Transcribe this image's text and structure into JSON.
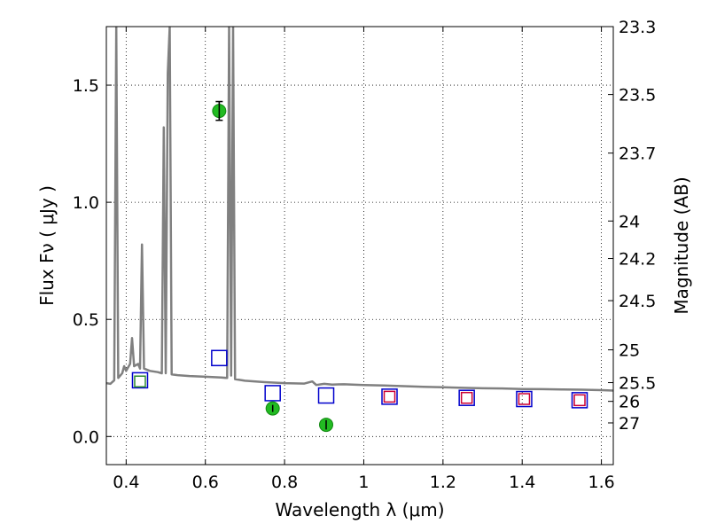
{
  "chart_data": {
    "type": "scatter",
    "title": "",
    "xlabel": "Wavelength  λ (μm)",
    "ylabel": "Flux  Fν  ( μJy )",
    "ylabel_right": "Magnitude (AB)",
    "xlim": [
      0.35,
      1.63
    ],
    "ylim": [
      -0.12,
      1.75
    ],
    "grid": true,
    "x_ticks": [
      0.4,
      0.6,
      0.8,
      1.0,
      1.2,
      1.4,
      1.6
    ],
    "x_tick_labels": [
      "0.4",
      "0.6",
      "0.8",
      "1",
      "1.2",
      "1.4",
      "1.6"
    ],
    "y_ticks": [
      0.0,
      0.5,
      1.0,
      1.5
    ],
    "y_tick_labels": [
      "0.0",
      "0.5",
      "1.0",
      "1.5"
    ],
    "right_ticks": [
      {
        "label": "23.3",
        "flux": 1.75
      },
      {
        "label": "23.5",
        "flux": 1.46
      },
      {
        "label": "23.7",
        "flux": 1.21
      },
      {
        "label": "24",
        "flux": 0.92
      },
      {
        "label": "24.2",
        "flux": 0.76
      },
      {
        "label": "24.5",
        "flux": 0.58
      },
      {
        "label": "25",
        "flux": 0.37
      },
      {
        "label": "25.5",
        "flux": 0.23
      },
      {
        "label": "26",
        "flux": 0.15
      },
      {
        "label": "27",
        "flux": 0.058
      }
    ],
    "series": [
      {
        "kind": "line",
        "color": "#808080",
        "points": [
          [
            0.35,
            0.228
          ],
          [
            0.36,
            0.225
          ],
          [
            0.37,
            0.24
          ],
          [
            0.375,
            1.75
          ],
          [
            0.38,
            0.25
          ],
          [
            0.39,
            0.27
          ],
          [
            0.395,
            0.3
          ],
          [
            0.4,
            0.28
          ],
          [
            0.41,
            0.31
          ],
          [
            0.415,
            0.42
          ],
          [
            0.42,
            0.3
          ],
          [
            0.43,
            0.31
          ],
          [
            0.435,
            0.29
          ],
          [
            0.44,
            0.82
          ],
          [
            0.445,
            0.29
          ],
          [
            0.46,
            0.28
          ],
          [
            0.48,
            0.275
          ],
          [
            0.49,
            0.27
          ],
          [
            0.495,
            1.32
          ],
          [
            0.5,
            0.27
          ],
          [
            0.505,
            1.55
          ],
          [
            0.51,
            1.75
          ],
          [
            0.515,
            0.265
          ],
          [
            0.53,
            0.262
          ],
          [
            0.56,
            0.258
          ],
          [
            0.6,
            0.255
          ],
          [
            0.64,
            0.252
          ],
          [
            0.655,
            0.25
          ],
          [
            0.66,
            1.75
          ],
          [
            0.665,
            0.26
          ],
          [
            0.67,
            1.75
          ],
          [
            0.675,
            0.245
          ],
          [
            0.7,
            0.238
          ],
          [
            0.75,
            0.232
          ],
          [
            0.8,
            0.228
          ],
          [
            0.85,
            0.226
          ],
          [
            0.87,
            0.235
          ],
          [
            0.88,
            0.22
          ],
          [
            0.9,
            0.225
          ],
          [
            0.92,
            0.222
          ],
          [
            0.95,
            0.223
          ],
          [
            1.0,
            0.22
          ],
          [
            1.05,
            0.218
          ],
          [
            1.1,
            0.215
          ],
          [
            1.15,
            0.212
          ],
          [
            1.2,
            0.21
          ],
          [
            1.25,
            0.208
          ],
          [
            1.3,
            0.206
          ],
          [
            1.35,
            0.205
          ],
          [
            1.4,
            0.203
          ],
          [
            1.45,
            0.202
          ],
          [
            1.5,
            0.201
          ],
          [
            1.55,
            0.2
          ],
          [
            1.6,
            0.198
          ],
          [
            1.63,
            0.196
          ]
        ]
      },
      {
        "kind": "open-square-large",
        "color": "#0000cc",
        "x": [
          0.435,
          0.635,
          0.77,
          0.905,
          1.065,
          1.26,
          1.405,
          1.545
        ],
        "y": [
          0.24,
          0.335,
          0.185,
          0.175,
          0.17,
          0.165,
          0.16,
          0.155
        ]
      },
      {
        "kind": "open-square-small",
        "color": "#2e8b2e",
        "x": [
          0.435
        ],
        "y": [
          0.235
        ]
      },
      {
        "kind": "open-square-small",
        "color": "#cc0033",
        "x": [
          1.065,
          1.26,
          1.405,
          1.545
        ],
        "y": [
          0.17,
          0.165,
          0.16,
          0.155
        ]
      },
      {
        "kind": "filled-circle",
        "color": "#22bb22",
        "x": [
          0.635,
          0.77,
          0.905
        ],
        "y": [
          1.39,
          0.12,
          0.05
        ],
        "yerr": [
          0.04,
          0.015,
          0.02
        ]
      }
    ]
  }
}
